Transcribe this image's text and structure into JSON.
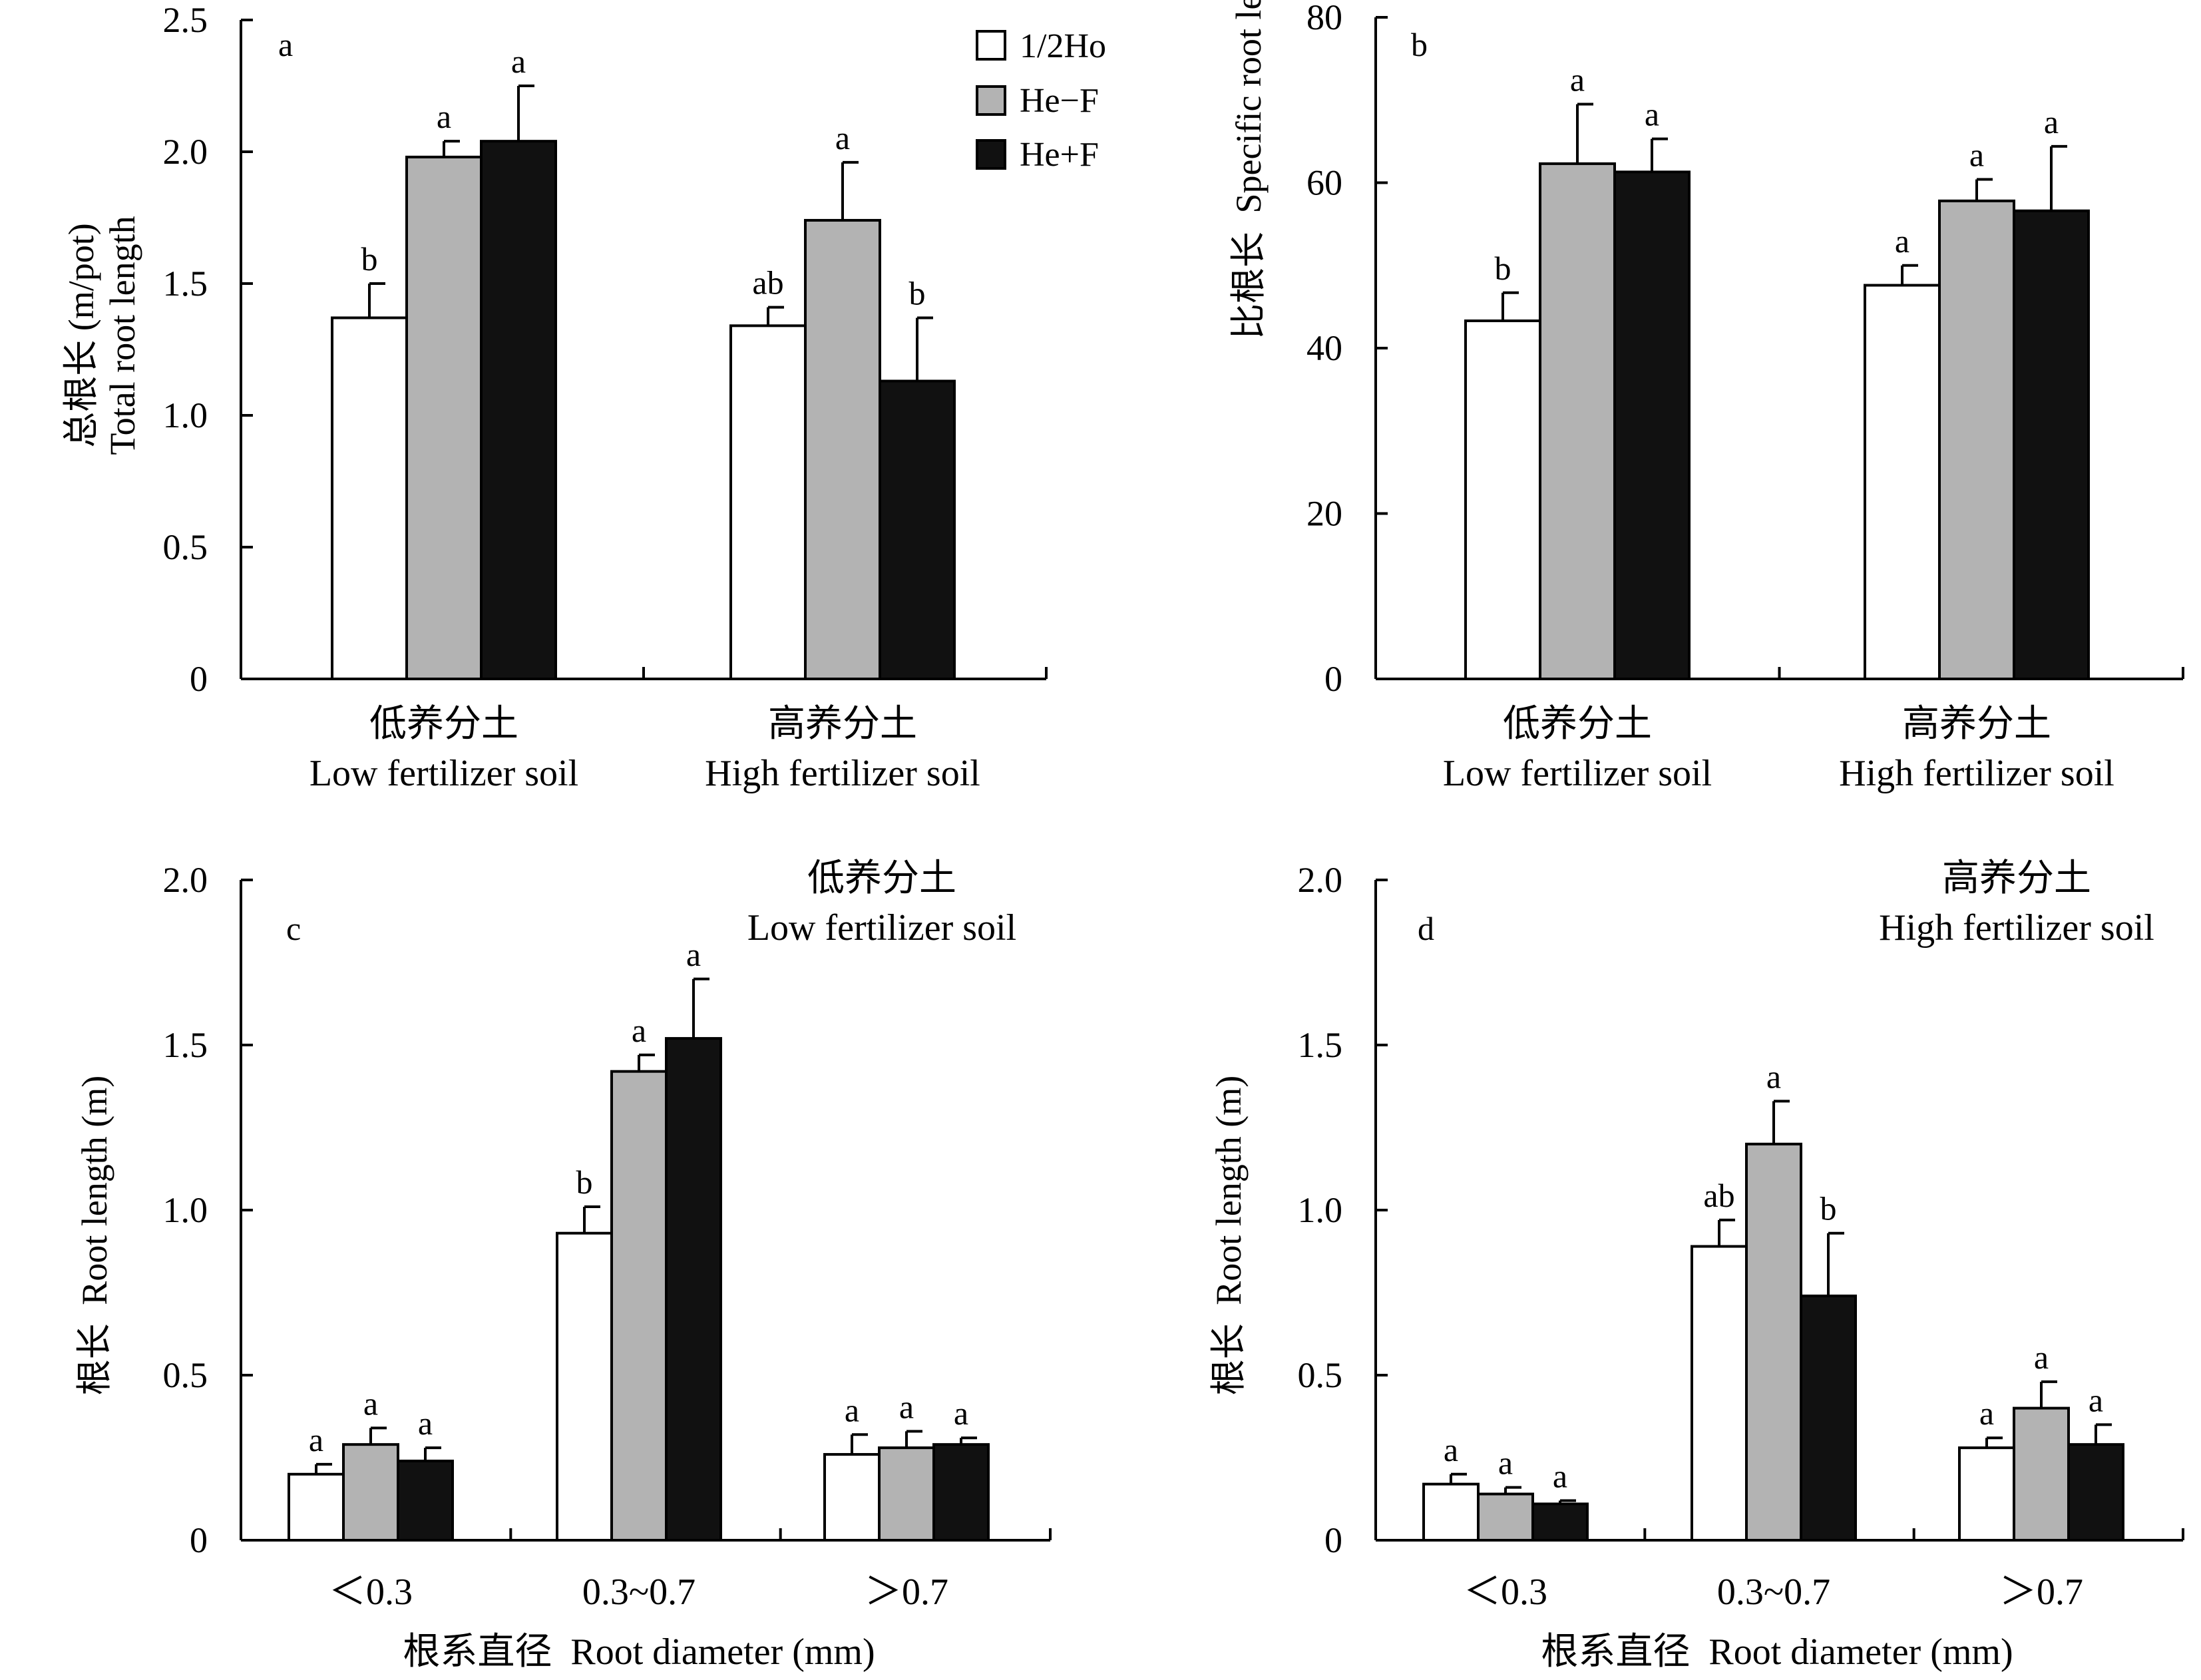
{
  "colors": {
    "half_ho": "#ffffff",
    "he_minus_f": "#b3b3b3",
    "he_plus_f": "#111111",
    "axis": "#000000"
  },
  "legend": [
    {
      "key": "half_ho",
      "label": "1/2Ho"
    },
    {
      "key": "he_minus_f",
      "label": "He−F"
    },
    {
      "key": "he_plus_f",
      "label": "He+F"
    }
  ],
  "chart_data": [
    {
      "type": "bar",
      "panel": "a",
      "ylabel_cn": "总根长 (m/pot)",
      "ylabel_en": "Total root length",
      "ylim": [
        0,
        2.5
      ],
      "yticks": [
        0,
        0.5,
        1.0,
        1.5,
        2.0,
        2.5
      ],
      "ytick_labels": [
        "0",
        "0.5",
        "1.0",
        "1.5",
        "2.0",
        "2.5"
      ],
      "categories": [
        {
          "cn": "低养分土",
          "en": "Low fertilizer soil"
        },
        {
          "cn": "高养分土",
          "en": "High fertilizer soil"
        }
      ],
      "series": [
        {
          "name": "1/2Ho",
          "key": "half_ho",
          "values": [
            1.37,
            1.34
          ],
          "errors": [
            0.13,
            0.07
          ],
          "letters": [
            "b",
            "ab"
          ]
        },
        {
          "name": "He−F",
          "key": "he_minus_f",
          "values": [
            1.98,
            1.74
          ],
          "errors": [
            0.06,
            0.22
          ],
          "letters": [
            "a",
            "a"
          ]
        },
        {
          "name": "He+F",
          "key": "he_plus_f",
          "values": [
            2.04,
            1.13
          ],
          "errors": [
            0.21,
            0.24
          ],
          "letters": [
            "a",
            "b"
          ]
        }
      ]
    },
    {
      "type": "bar",
      "panel": "b",
      "ylabel_cn": "比根长",
      "ylabel_en": "Specific root length (m/g)",
      "ylim": [
        0,
        80
      ],
      "yticks": [
        0,
        20,
        40,
        60,
        80
      ],
      "ytick_labels": [
        "0",
        "20",
        "40",
        "60",
        "80"
      ],
      "categories": [
        {
          "cn": "低养分土",
          "en": "Low fertilizer soil"
        },
        {
          "cn": "高养分土",
          "en": "High fertilizer soil"
        }
      ],
      "series": [
        {
          "name": "1/2Ho",
          "key": "half_ho",
          "values": [
            43.3,
            47.6
          ],
          "errors": [
            3.4,
            2.4
          ],
          "letters": [
            "b",
            "a"
          ]
        },
        {
          "name": "He−F",
          "key": "he_minus_f",
          "values": [
            62.3,
            57.8
          ],
          "errors": [
            7.2,
            2.6
          ],
          "letters": [
            "a",
            "a"
          ]
        },
        {
          "name": "He+F",
          "key": "he_plus_f",
          "values": [
            61.3,
            56.6
          ],
          "errors": [
            4.0,
            7.8
          ],
          "letters": [
            "a",
            "a"
          ]
        }
      ]
    },
    {
      "type": "bar",
      "panel": "c",
      "title_cn": "低养分土",
      "title_en": "Low fertilizer soil",
      "ylabel_cn": "根长",
      "ylabel_en": "Root length (m)",
      "xlabel_cn": "根系直径",
      "xlabel_en": "Root diameter (mm)",
      "ylim": [
        0,
        2.0
      ],
      "yticks": [
        0,
        0.5,
        1.0,
        1.5,
        2.0
      ],
      "ytick_labels": [
        "0",
        "0.5",
        "1.0",
        "1.5",
        "2.0"
      ],
      "categories": [
        {
          "en": "＜0.3"
        },
        {
          "en": "0.3~0.7"
        },
        {
          "en": "＞0.7"
        }
      ],
      "series": [
        {
          "name": "1/2Ho",
          "key": "half_ho",
          "values": [
            0.2,
            0.93,
            0.26
          ],
          "errors": [
            0.03,
            0.08,
            0.06
          ],
          "letters": [
            "a",
            "b",
            "a"
          ]
        },
        {
          "name": "He−F",
          "key": "he_minus_f",
          "values": [
            0.29,
            1.42,
            0.28
          ],
          "errors": [
            0.05,
            0.05,
            0.05
          ],
          "letters": [
            "a",
            "a",
            "a"
          ]
        },
        {
          "name": "He+F",
          "key": "he_plus_f",
          "values": [
            0.24,
            1.52,
            0.29
          ],
          "errors": [
            0.04,
            0.18,
            0.02
          ],
          "letters": [
            "a",
            "a",
            "a"
          ]
        }
      ]
    },
    {
      "type": "bar",
      "panel": "d",
      "title_cn": "高养分土",
      "title_en": "High fertilizer soil",
      "ylabel_cn": "根长",
      "ylabel_en": "Root length (m)",
      "xlabel_cn": "根系直径",
      "xlabel_en": "Root diameter (mm)",
      "ylim": [
        0,
        2.0
      ],
      "yticks": [
        0,
        0.5,
        1.0,
        1.5,
        2.0
      ],
      "ytick_labels": [
        "0",
        "0.5",
        "1.0",
        "1.5",
        "2.0"
      ],
      "categories": [
        {
          "en": "＜0.3"
        },
        {
          "en": "0.3~0.7"
        },
        {
          "en": "＞0.7"
        }
      ],
      "series": [
        {
          "name": "1/2Ho",
          "key": "half_ho",
          "values": [
            0.17,
            0.89,
            0.28
          ],
          "errors": [
            0.03,
            0.08,
            0.03
          ],
          "letters": [
            "a",
            "ab",
            "a"
          ]
        },
        {
          "name": "He−F",
          "key": "he_minus_f",
          "values": [
            0.14,
            1.2,
            0.4
          ],
          "errors": [
            0.02,
            0.13,
            0.08
          ],
          "letters": [
            "a",
            "a",
            "a"
          ]
        },
        {
          "name": "He+F",
          "key": "he_plus_f",
          "values": [
            0.11,
            0.74,
            0.29
          ],
          "errors": [
            0.01,
            0.19,
            0.06
          ],
          "letters": [
            "a",
            "b",
            "a"
          ]
        }
      ]
    }
  ]
}
